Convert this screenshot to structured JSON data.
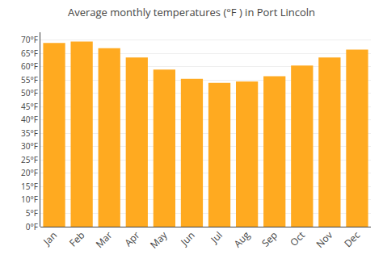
{
  "chart_data": {
    "type": "bar",
    "title": "Average monthly temperatures (°F ) in Port Lincoln",
    "categories": [
      "Jan",
      "Feb",
      "Mar",
      "Apr",
      "May",
      "Jun",
      "Jul",
      "Aug",
      "Sep",
      "Oct",
      "Nov",
      "Dec"
    ],
    "values": [
      69,
      69.5,
      67,
      63.5,
      59,
      55.5,
      54,
      54.5,
      56.5,
      60.5,
      63.5,
      66.5
    ],
    "color": "#FFAA20",
    "ylim": [
      0,
      73
    ],
    "yticks": [
      {
        "value": 0,
        "label": "0°F"
      },
      {
        "value": 5,
        "label": "5°F"
      },
      {
        "value": 10,
        "label": "10°F"
      },
      {
        "value": 15,
        "label": "15°F"
      },
      {
        "value": 20,
        "label": "20°F"
      },
      {
        "value": 25,
        "label": "25°F"
      },
      {
        "value": 30,
        "label": "30°F"
      },
      {
        "value": 35,
        "label": "35°F"
      },
      {
        "value": 40,
        "label": "40°F"
      },
      {
        "value": 45,
        "label": "45°F"
      },
      {
        "value": 50,
        "label": "50°F"
      },
      {
        "value": 55,
        "label": "55°F"
      },
      {
        "value": 60,
        "label": "60°F"
      },
      {
        "value": 65,
        "label": "65°F"
      },
      {
        "value": 70,
        "label": "70°F"
      }
    ],
    "grid": true
  }
}
